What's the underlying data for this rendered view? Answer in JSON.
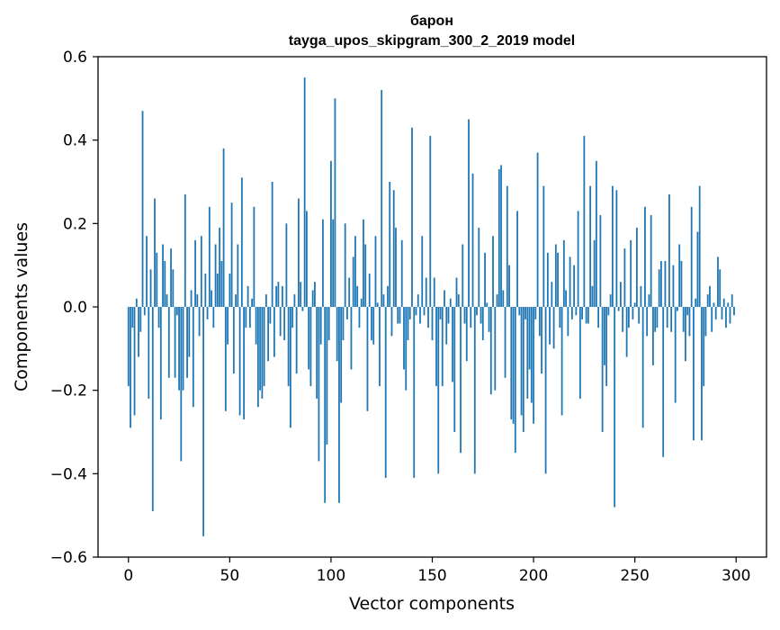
{
  "chart_data": {
    "type": "bar",
    "title": "барон",
    "subtitle": "tayga_upos_skipgram_300_2_2019 model",
    "xlabel": "Vector components",
    "ylabel": "Components values",
    "xlim": [
      -15,
      315
    ],
    "ylim": [
      -0.6,
      0.6
    ],
    "xticks": [
      0,
      50,
      100,
      150,
      200,
      250,
      300
    ],
    "xtick_labels": [
      "0",
      "50",
      "100",
      "150",
      "200",
      "250",
      "300"
    ],
    "yticks": [
      -0.6,
      -0.4,
      -0.2,
      0.0,
      0.2,
      0.4,
      0.6
    ],
    "ytick_labels": [
      "−0.6",
      "−0.4",
      "−0.2",
      "0.0",
      "0.2",
      "0.4",
      "0.6"
    ],
    "grid": false,
    "color": "#1f77b4",
    "x": [
      0,
      1,
      2,
      3,
      4,
      5,
      6,
      7,
      8,
      9,
      10,
      11,
      12,
      13,
      14,
      15,
      16,
      17,
      18,
      19,
      20,
      21,
      22,
      23,
      24,
      25,
      26,
      27,
      28,
      29,
      30,
      31,
      32,
      33,
      34,
      35,
      36,
      37,
      38,
      39,
      40,
      41,
      42,
      43,
      44,
      45,
      46,
      47,
      48,
      49,
      50,
      51,
      52,
      53,
      54,
      55,
      56,
      57,
      58,
      59,
      60,
      61,
      62,
      63,
      64,
      65,
      66,
      67,
      68,
      69,
      70,
      71,
      72,
      73,
      74,
      75,
      76,
      77,
      78,
      79,
      80,
      81,
      82,
      83,
      84,
      85,
      86,
      87,
      88,
      89,
      90,
      91,
      92,
      93,
      94,
      95,
      96,
      97,
      98,
      99,
      100,
      101,
      102,
      103,
      104,
      105,
      106,
      107,
      108,
      109,
      110,
      111,
      112,
      113,
      114,
      115,
      116,
      117,
      118,
      119,
      120,
      121,
      122,
      123,
      124,
      125,
      126,
      127,
      128,
      129,
      130,
      131,
      132,
      133,
      134,
      135,
      136,
      137,
      138,
      139,
      140,
      141,
      142,
      143,
      144,
      145,
      146,
      147,
      148,
      149,
      150,
      151,
      152,
      153,
      154,
      155,
      156,
      157,
      158,
      159,
      160,
      161,
      162,
      163,
      164,
      165,
      166,
      167,
      168,
      169,
      170,
      171,
      172,
      173,
      174,
      175,
      176,
      177,
      178,
      179,
      180,
      181,
      182,
      183,
      184,
      185,
      186,
      187,
      188,
      189,
      190,
      191,
      192,
      193,
      194,
      195,
      196,
      197,
      198,
      199,
      200,
      201,
      202,
      203,
      204,
      205,
      206,
      207,
      208,
      209,
      210,
      211,
      212,
      213,
      214,
      215,
      216,
      217,
      218,
      219,
      220,
      221,
      222,
      223,
      224,
      225,
      226,
      227,
      228,
      229,
      230,
      231,
      232,
      233,
      234,
      235,
      236,
      237,
      238,
      239,
      240,
      241,
      242,
      243,
      244,
      245,
      246,
      247,
      248,
      249,
      250,
      251,
      252,
      253,
      254,
      255,
      256,
      257,
      258,
      259,
      260,
      261,
      262,
      263,
      264,
      265,
      266,
      267,
      268,
      269,
      270,
      271,
      272,
      273,
      274,
      275,
      276,
      277,
      278,
      279,
      280,
      281,
      282,
      283,
      284,
      285,
      286,
      287,
      288,
      289,
      290,
      291,
      292,
      293,
      294,
      295,
      296,
      297,
      298,
      299
    ],
    "values": [
      -0.19,
      -0.29,
      -0.05,
      -0.26,
      0.02,
      -0.12,
      -0.06,
      0.47,
      -0.02,
      0.17,
      -0.22,
      0.09,
      -0.49,
      0.26,
      0.13,
      -0.05,
      -0.27,
      0.15,
      0.11,
      0.03,
      -0.17,
      0.14,
      0.09,
      -0.17,
      -0.02,
      -0.2,
      -0.37,
      -0.2,
      0.27,
      -0.17,
      -0.12,
      0.04,
      -0.24,
      0.16,
      0.03,
      -0.07,
      0.17,
      -0.55,
      0.08,
      -0.03,
      0.24,
      0.04,
      -0.05,
      0.15,
      0.08,
      0.19,
      0.11,
      0.38,
      -0.25,
      -0.09,
      0.08,
      0.25,
      -0.16,
      0.03,
      0.15,
      -0.26,
      0.31,
      -0.27,
      -0.05,
      0.05,
      -0.05,
      0.02,
      0.24,
      -0.09,
      -0.24,
      -0.2,
      -0.22,
      -0.19,
      0.03,
      -0.13,
      -0.04,
      0.3,
      -0.12,
      0.05,
      0.06,
      -0.07,
      0.05,
      -0.08,
      0.2,
      -0.19,
      -0.29,
      -0.05,
      0.03,
      -0.16,
      0.26,
      0.06,
      -0.01,
      0.55,
      0.23,
      -0.15,
      -0.19,
      0.04,
      0.06,
      -0.22,
      -0.37,
      -0.09,
      0.21,
      -0.47,
      -0.33,
      -0.08,
      0.35,
      0.21,
      0.5,
      -0.13,
      -0.47,
      -0.23,
      -0.08,
      0.2,
      -0.03,
      0.07,
      -0.15,
      0.12,
      0.17,
      0.05,
      -0.05,
      0.02,
      0.21,
      0.15,
      -0.25,
      0.08,
      -0.08,
      -0.09,
      0.17,
      0.01,
      -0.19,
      0.52,
      0.03,
      -0.41,
      0.05,
      0.3,
      -0.07,
      0.28,
      0.19,
      -0.04,
      -0.04,
      0.16,
      -0.15,
      -0.2,
      -0.08,
      -0.03,
      0.43,
      -0.41,
      -0.02,
      0.03,
      -0.04,
      0.17,
      -0.02,
      0.07,
      -0.05,
      0.41,
      -0.08,
      0.07,
      -0.19,
      -0.4,
      -0.03,
      -0.19,
      0.04,
      -0.09,
      -0.04,
      0.02,
      -0.18,
      -0.3,
      0.07,
      0.03,
      -0.35,
      0.15,
      -0.04,
      -0.13,
      0.45,
      -0.05,
      0.32,
      -0.4,
      -0.02,
      0.19,
      -0.04,
      -0.08,
      0.13,
      0.01,
      -0.06,
      -0.21,
      0.17,
      -0.2,
      0.03,
      0.33,
      0.34,
      0.04,
      -0.17,
      0.29,
      0.1,
      -0.27,
      -0.28,
      -0.35,
      0.23,
      -0.02,
      -0.26,
      -0.3,
      -0.03,
      -0.22,
      -0.15,
      -0.23,
      -0.28,
      -0.03,
      0.37,
      -0.07,
      -0.16,
      0.29,
      -0.4,
      0.13,
      -0.09,
      0.06,
      -0.1,
      0.15,
      0.13,
      -0.05,
      -0.26,
      0.16,
      0.04,
      -0.07,
      0.12,
      -0.03,
      0.1,
      -0.02,
      0.23,
      -0.22,
      -0.03,
      0.41,
      -0.04,
      -0.04,
      0.29,
      0.05,
      0.16,
      0.35,
      -0.05,
      0.22,
      -0.3,
      -0.14,
      -0.19,
      -0.02,
      0.03,
      0.29,
      -0.48,
      0.28,
      -0.01,
      0.06,
      -0.06,
      0.14,
      -0.12,
      -0.05,
      0.16,
      -0.03,
      0.01,
      0.19,
      -0.04,
      0.05,
      -0.29,
      0.24,
      -0.07,
      0.03,
      0.22,
      -0.14,
      -0.06,
      -0.05,
      0.09,
      0.11,
      -0.36,
      0.11,
      -0.05,
      0.27,
      -0.06,
      0.1,
      -0.23,
      -0.01,
      0.15,
      0.11,
      -0.06,
      -0.13,
      -0.02,
      -0.07,
      0.24,
      -0.32,
      0.02,
      0.18,
      0.29,
      -0.32,
      -0.19,
      -0.07,
      0.03,
      0.05,
      -0.06,
      0.01,
      -0.03,
      0.12,
      0.09,
      -0.03,
      0.02,
      -0.05,
      0.01,
      -0.04,
      0.03,
      -0.02
    ]
  }
}
